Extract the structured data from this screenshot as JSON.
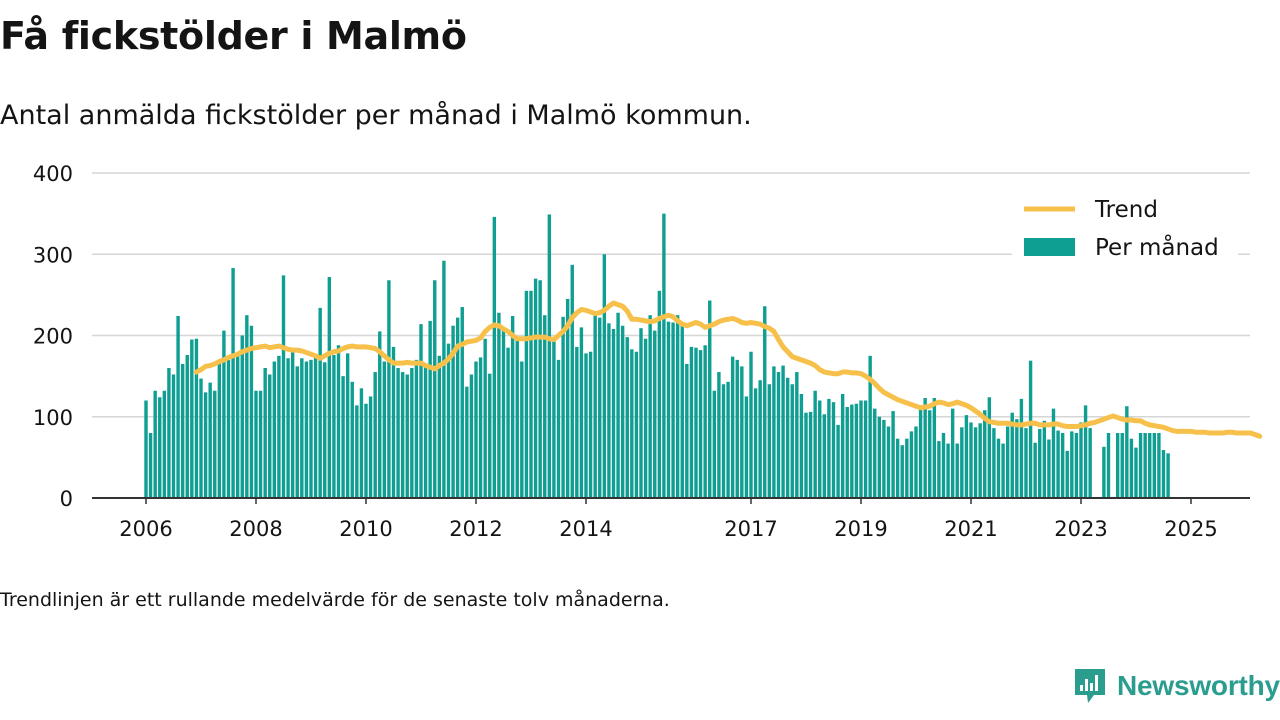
{
  "header": {
    "title": "Få fickstölder i Malmö",
    "subtitle": "Antal anmälda fickstölder per månad i Malmö kommun."
  },
  "footnote": "Trendlinjen är ett rullande medelvärde för de senaste tolv månaderna.",
  "logo": {
    "text": "Newsworthy",
    "icon": "newsworthy-chart-icon"
  },
  "colors": {
    "bar": "#0e9e92",
    "trend": "#f7c04a",
    "grid": "#d6d6d6",
    "axis": "#333333",
    "text": "#141414",
    "brand": "#2a9d8f"
  },
  "chart_data": {
    "type": "bar",
    "x_start": "2006-01",
    "x_ticks": [
      "2006",
      "2008",
      "2010",
      "2012",
      "2014",
      "2017",
      "2019",
      "2021",
      "2023",
      "2025"
    ],
    "y_ticks": [
      0,
      100,
      200,
      300,
      400
    ],
    "ylim": [
      0,
      400
    ],
    "grid": true,
    "legend_position": "top-right",
    "series": [
      {
        "name": "Per månad",
        "type": "bar",
        "start": "2006-01",
        "values": [
          120,
          80,
          132,
          124,
          132,
          160,
          152,
          224,
          165,
          176,
          195,
          196,
          147,
          130,
          142,
          132,
          166,
          206,
          170,
          283,
          178,
          200,
          225,
          212,
          132,
          132,
          160,
          152,
          168,
          175,
          274,
          172,
          180,
          162,
          172,
          168,
          170,
          176,
          234,
          167,
          272,
          176,
          188,
          150,
          178,
          143,
          114,
          135,
          116,
          125,
          155,
          205,
          168,
          268,
          186,
          160,
          155,
          152,
          160,
          170,
          214,
          162,
          218,
          268,
          175,
          292,
          190,
          212,
          222,
          235,
          137,
          152,
          168,
          173,
          196,
          153,
          346,
          228,
          208,
          185,
          224,
          195,
          168,
          255,
          255,
          270,
          268,
          225,
          349,
          194,
          170,
          223,
          245,
          287,
          186,
          210,
          178,
          180,
          230,
          222,
          300,
          215,
          208,
          228,
          212,
          198,
          183,
          180,
          209,
          196,
          225,
          206,
          255,
          350,
          217,
          216,
          225,
          212,
          165,
          186,
          185,
          182,
          188,
          243,
          132,
          155,
          140,
          143,
          174,
          170,
          162,
          125,
          180,
          135,
          145,
          236,
          140,
          162,
          155,
          163,
          148,
          140,
          155,
          128,
          105,
          106,
          132,
          120,
          103,
          122,
          118,
          90,
          128,
          112,
          115,
          116,
          120,
          120,
          175,
          110,
          100,
          96,
          88,
          107,
          73,
          65,
          73,
          82,
          88,
          113,
          123,
          108,
          123,
          70,
          80,
          67,
          110,
          67,
          87,
          102,
          93,
          87,
          92,
          108,
          124,
          86,
          73,
          67,
          88,
          105,
          97,
          122,
          86,
          169,
          68,
          85,
          95,
          72,
          110,
          83,
          80,
          58,
          82,
          80,
          93,
          114,
          86,
          0,
          0,
          63,
          80,
          0,
          80,
          80,
          113,
          73,
          62,
          80,
          80,
          80,
          80,
          80,
          59,
          55
        ]
      },
      {
        "name": "Trend",
        "type": "line",
        "start": "2006-12",
        "values": [
          155,
          158,
          162,
          163,
          165,
          168,
          170,
          173,
          175,
          177,
          180,
          182,
          184,
          185,
          186,
          187,
          185,
          186,
          187,
          185,
          183,
          182,
          182,
          181,
          179,
          177,
          175,
          172,
          175,
          178,
          180,
          181,
          184,
          186,
          187,
          186,
          186,
          186,
          185,
          184,
          180,
          175,
          170,
          166,
          166,
          166,
          167,
          166,
          166,
          166,
          163,
          161,
          159,
          163,
          166,
          171,
          178,
          187,
          189,
          192,
          193,
          194,
          197,
          205,
          210,
          213,
          212,
          208,
          205,
          200,
          196,
          196,
          196,
          197,
          198,
          198,
          198,
          196,
          195,
          200,
          205,
          212,
          222,
          228,
          232,
          231,
          229,
          227,
          228,
          231,
          236,
          240,
          238,
          236,
          230,
          220,
          220,
          219,
          218,
          217,
          218,
          221,
          223,
          225,
          223,
          218,
          214,
          212,
          214,
          216,
          214,
          210,
          212,
          214,
          217,
          219,
          220,
          221,
          219,
          216,
          215,
          216,
          215,
          214,
          211,
          209,
          205,
          195,
          186,
          180,
          174,
          172,
          170,
          168,
          166,
          163,
          158,
          155,
          154,
          153,
          153,
          155,
          155,
          154,
          154,
          153,
          150,
          146,
          141,
          135,
          130,
          127,
          124,
          121,
          119,
          117,
          115,
          113,
          111,
          112,
          113,
          116,
          118,
          117,
          115,
          116,
          118,
          116,
          114,
          111,
          107,
          103,
          98,
          94,
          93,
          92,
          92,
          92,
          91,
          90,
          90,
          91,
          92,
          92,
          90,
          90,
          90,
          91,
          91,
          89,
          88,
          88,
          88,
          89,
          90,
          92,
          93,
          95,
          97,
          99,
          101,
          99,
          97,
          96,
          96,
          95,
          95,
          92,
          90,
          89,
          88,
          87,
          85,
          83,
          82,
          82,
          82,
          82,
          81,
          81,
          81,
          80,
          80,
          80,
          80,
          81,
          81,
          80,
          80,
          80,
          80,
          78,
          76
        ]
      }
    ],
    "legend": [
      {
        "name": "Trend",
        "swatch": "line"
      },
      {
        "name": "Per månad",
        "swatch": "bar"
      }
    ]
  }
}
